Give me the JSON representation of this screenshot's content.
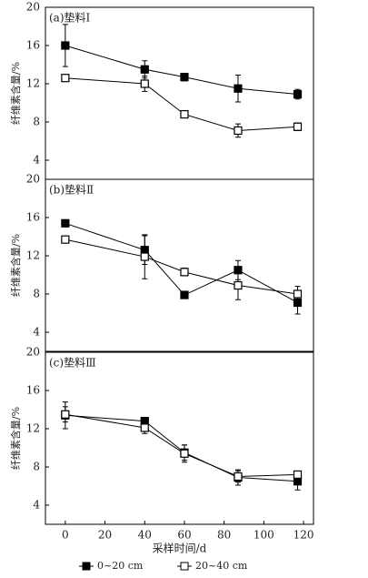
{
  "chart_data": [
    {
      "type": "line",
      "title": "(a)垫料Ⅰ",
      "y_label": "纤维素含量/%",
      "x": [
        0,
        40,
        60,
        87,
        117
      ],
      "xlim": [
        -10,
        125
      ],
      "ylim": [
        2,
        20
      ],
      "yticks": [
        4,
        8,
        12,
        16,
        20
      ],
      "series": [
        {
          "color": "#000000",
          "marker": "filled",
          "values": [
            16.0,
            13.5,
            12.7,
            11.5,
            10.9
          ],
          "errors": [
            2.2,
            0.9,
            0.4,
            1.4,
            0.5
          ]
        },
        {
          "color": "#000000",
          "marker": "open",
          "values": [
            12.6,
            12.0,
            8.8,
            7.1,
            7.5
          ],
          "errors": [
            0.3,
            0.8,
            0.3,
            0.7,
            0.4
          ]
        }
      ]
    },
    {
      "type": "line",
      "title": "(b)垫料Ⅱ",
      "y_label": "纤维素含量/%",
      "x": [
        0,
        40,
        60,
        87,
        117
      ],
      "xlim": [
        -10,
        125
      ],
      "ylim": [
        2,
        20
      ],
      "yticks": [
        4,
        8,
        12,
        16,
        20
      ],
      "series": [
        {
          "color": "#000000",
          "marker": "filled",
          "values": [
            15.4,
            12.6,
            7.9,
            10.5,
            7.1
          ],
          "errors": [
            0.2,
            1.5,
            0.2,
            1.0,
            1.2
          ]
        },
        {
          "color": "#000000",
          "marker": "open",
          "values": [
            13.7,
            11.9,
            10.3,
            8.9,
            8.0
          ],
          "errors": [
            0.3,
            2.3,
            0.4,
            1.5,
            0.8
          ]
        }
      ]
    },
    {
      "type": "line",
      "title": "(c)垫料Ⅲ",
      "y_label": "纤维素含量/%",
      "x_label": "采样时间/d",
      "x": [
        0,
        40,
        60,
        87,
        117
      ],
      "xlim": [
        -10,
        125
      ],
      "xticks": [
        0,
        20,
        40,
        60,
        80,
        100,
        120
      ],
      "ylim": [
        2,
        20
      ],
      "yticks": [
        4,
        8,
        12,
        16,
        20
      ],
      "series": [
        {
          "name": "0~20 cm",
          "color": "#000000",
          "marker": "filled",
          "values": [
            13.4,
            12.8,
            9.5,
            6.9,
            6.5
          ],
          "errors": [
            1.4,
            0.3,
            0.8,
            0.8,
            0.9
          ]
        },
        {
          "name": "20~40 cm",
          "color": "#000000",
          "marker": "open",
          "values": [
            13.5,
            12.1,
            9.4,
            7.0,
            7.2
          ],
          "errors": [
            0.8,
            0.6,
            0.9,
            0.6,
            0.3
          ]
        }
      ]
    }
  ]
}
